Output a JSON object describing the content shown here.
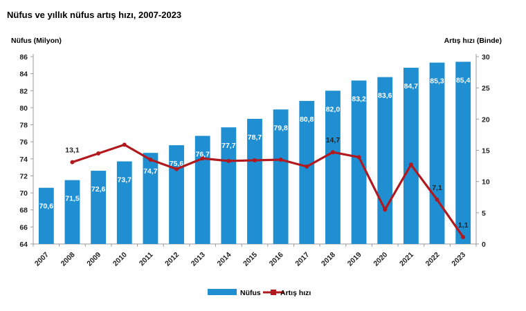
{
  "chart_data": {
    "type": "bar",
    "title": "Nüfus ve yıllık nüfus artış hızı, 2007-2023",
    "ylabel": "Nüfus (Milyon)",
    "y2label": "Artış hızı (Binde)",
    "categories": [
      "2007",
      "2008",
      "2009",
      "2010",
      "2011",
      "2012",
      "2013",
      "2014",
      "2015",
      "2016",
      "2017",
      "2018",
      "2019",
      "2020",
      "2021",
      "2022",
      "2023"
    ],
    "ylim": [
      64,
      86
    ],
    "yticks": [
      "64",
      "66",
      "68",
      "70",
      "72",
      "74",
      "76",
      "78",
      "80",
      "82",
      "84",
      "86"
    ],
    "y2lim": [
      0,
      30
    ],
    "y2ticks": [
      "0",
      "5",
      "10",
      "15",
      "20",
      "25",
      "30"
    ],
    "legend_position": "bottom",
    "series": [
      {
        "name": "Nüfus",
        "type": "bar",
        "color": "#1f8fd2",
        "values": [
          70.6,
          71.5,
          72.6,
          73.7,
          74.7,
          75.6,
          76.7,
          77.7,
          78.7,
          79.8,
          80.8,
          82.0,
          83.2,
          83.6,
          84.7,
          85.3,
          85.4
        ],
        "labels": [
          "70,6",
          "71,5",
          "72,6",
          "73,7",
          "74,7",
          "75,6",
          "76,7",
          "77,7",
          "78,7",
          "79,8",
          "80,8",
          "82,0",
          "83,2",
          "83,6",
          "84,7",
          "85,3",
          "85,4"
        ]
      },
      {
        "name": "Artış hızı",
        "type": "line",
        "axis": "right",
        "color": "#b0191e",
        "values": [
          null,
          13.1,
          14.5,
          15.9,
          13.5,
          12.0,
          13.7,
          13.3,
          13.4,
          13.5,
          12.4,
          14.7,
          13.9,
          5.5,
          12.7,
          7.1,
          1.1
        ],
        "labels": [
          {
            "index": 1,
            "text": "13,1"
          },
          {
            "index": 11,
            "text": "14,7"
          },
          {
            "index": 15,
            "text": "7,1"
          },
          {
            "index": 16,
            "text": "1,1"
          }
        ]
      }
    ]
  }
}
